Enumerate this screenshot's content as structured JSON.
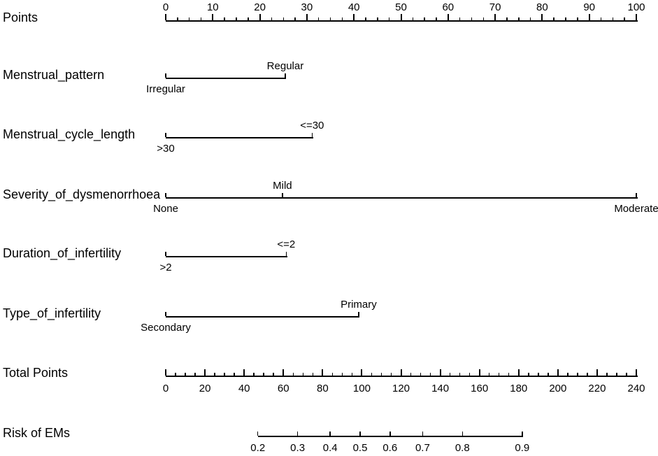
{
  "chart_data": {
    "type": "nomogram",
    "title": "",
    "colors": {
      "ink": "#000000",
      "background": "#ffffff"
    },
    "rows": [
      {
        "id": "points",
        "kind": "scale",
        "label": "Points",
        "min": 0,
        "max": 100,
        "major_tick_step": 10,
        "minor_tick_step": 2.5,
        "tick_labels": [
          "0",
          "10",
          "20",
          "30",
          "40",
          "50",
          "60",
          "70",
          "80",
          "90",
          "100"
        ],
        "tick_label_side": "above"
      },
      {
        "id": "menstrual-pattern",
        "kind": "variable",
        "label": "Menstrual_pattern",
        "levels": [
          {
            "name": "Irregular",
            "points": 0,
            "label_side": "below"
          },
          {
            "name": "Regular",
            "points": 25.4,
            "label_side": "above"
          }
        ]
      },
      {
        "id": "menstrual-cycle-length",
        "kind": "variable",
        "label": "Menstrual_cycle_length",
        "levels": [
          {
            "name": ">30",
            "points": 0,
            "label_side": "below"
          },
          {
            "name": "<=30",
            "points": 31.1,
            "label_side": "above"
          }
        ]
      },
      {
        "id": "severity-of-dysmenorrhoea",
        "kind": "variable",
        "label": "Severity_of_dysmenorrhoea",
        "levels": [
          {
            "name": "None",
            "points": 0,
            "label_side": "below"
          },
          {
            "name": "Mild",
            "points": 24.8,
            "label_side": "above"
          },
          {
            "name": "Moderate",
            "points": 100,
            "label_side": "below"
          }
        ]
      },
      {
        "id": "duration-of-infertility",
        "kind": "variable",
        "label": "Duration_of_infertility",
        "levels": [
          {
            "name": ">2",
            "points": 0,
            "label_side": "below"
          },
          {
            "name": "<=2",
            "points": 25.6,
            "label_side": "above"
          }
        ]
      },
      {
        "id": "type-of-infertility",
        "kind": "variable",
        "label": "Type_of_infertility",
        "levels": [
          {
            "name": "Secondary",
            "points": 0,
            "label_side": "below"
          },
          {
            "name": "Primary",
            "points": 41,
            "label_side": "above"
          }
        ]
      },
      {
        "id": "total-points",
        "kind": "scale",
        "label": "Total Points",
        "min": 0,
        "max": 240,
        "major_tick_step": 20,
        "minor_tick_step": 5,
        "tick_labels": [
          "0",
          "20",
          "40",
          "60",
          "80",
          "100",
          "120",
          "140",
          "160",
          "180",
          "200",
          "220",
          "240"
        ],
        "tick_label_side": "below"
      },
      {
        "id": "risk-of-ems",
        "kind": "probability",
        "label": "Risk of EMs",
        "scale": "logit",
        "ticks": [
          0.2,
          0.3,
          0.4,
          0.5,
          0.6,
          0.7,
          0.8,
          0.9
        ],
        "tick_labels": [
          "0.2",
          "0.3",
          "0.4",
          "0.5",
          "0.6",
          "0.7",
          "0.8",
          "0.9"
        ],
        "tick_label_side": "below"
      }
    ]
  }
}
